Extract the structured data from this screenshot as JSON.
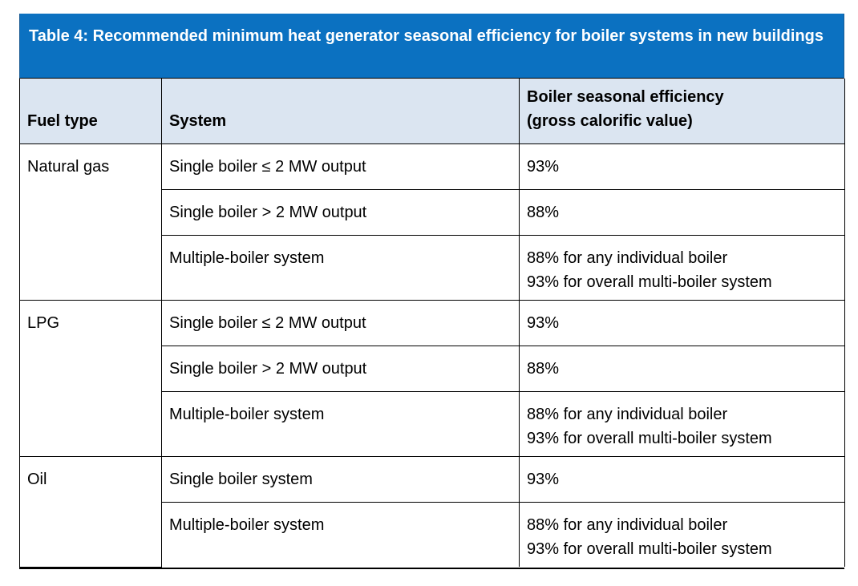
{
  "table": {
    "title": "Table 4: Recommended minimum heat generator seasonal efficiency for boiler systems in new buildings",
    "headers": {
      "fuel_type": "Fuel type",
      "system": "System",
      "efficiency_line1": "Boiler seasonal efficiency",
      "efficiency_line2": "(gross calorific value)"
    },
    "groups": [
      {
        "fuel": "Natural gas",
        "rows": [
          {
            "system": "Single boiler ≤ 2 MW output",
            "eff1": "93%",
            "eff2": ""
          },
          {
            "system": "Single boiler > 2 MW output",
            "eff1": "88%",
            "eff2": ""
          },
          {
            "system": "Multiple-boiler system",
            "eff1": "88% for any individual boiler",
            "eff2": "93% for overall multi-boiler system"
          }
        ]
      },
      {
        "fuel": "LPG",
        "rows": [
          {
            "system": "Single boiler ≤ 2 MW output",
            "eff1": "93%",
            "eff2": ""
          },
          {
            "system": "Single boiler > 2 MW output",
            "eff1": "88%",
            "eff2": ""
          },
          {
            "system": "Multiple-boiler system",
            "eff1": "88% for any individual boiler",
            "eff2": "93% for overall multi-boiler system"
          }
        ]
      },
      {
        "fuel": "Oil",
        "rows": [
          {
            "system": "Single boiler system",
            "eff1": "93%",
            "eff2": ""
          },
          {
            "system": "Multiple-boiler system",
            "eff1": "88% for any individual boiler",
            "eff2": "93% for overall multi-boiler system"
          }
        ]
      }
    ],
    "colors": {
      "title_background": "#0b71c1",
      "title_text": "#ffffff",
      "header_background": "#dbe5f1"
    }
  }
}
